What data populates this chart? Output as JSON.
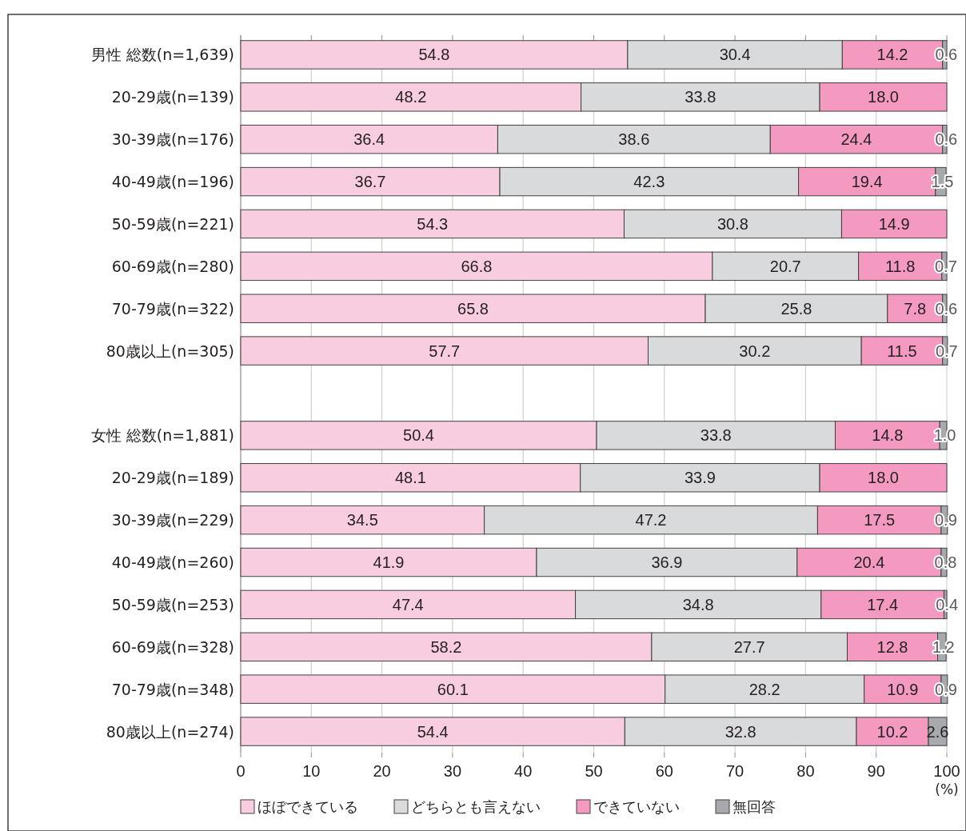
{
  "chart_data": {
    "type": "bar",
    "orientation": "horizontal",
    "stacked": true,
    "grid": "x",
    "legend": "bottom",
    "xlabel": "(%)",
    "categories": [
      "男性 総数(n=1,639)",
      "20-29歳(n=139)",
      "30-39歳(n=176)",
      "40-49歳(n=196)",
      "50-59歳(n=221)",
      "60-69歳(n=280)",
      "70-79歳(n=322)",
      "80歳以上(n=305)",
      null,
      "女性 総数(n=1,881)",
      "20-29歳(n=189)",
      "30-39歳(n=229)",
      "40-49歳(n=260)",
      "50-59歳(n=253)",
      "60-69歳(n=328)",
      "70-79歳(n=348)",
      "80歳以上(n=274)"
    ],
    "series": [
      {
        "name": "ほぼできている",
        "color": "#f9cde0",
        "values": [
          54.8,
          48.2,
          36.4,
          36.7,
          54.3,
          66.8,
          65.8,
          57.7,
          null,
          50.4,
          48.1,
          34.5,
          41.9,
          47.4,
          58.2,
          60.1,
          54.4
        ],
        "value_labels": [
          "54.8",
          "48.2",
          "36.4",
          "36.7",
          "54.3",
          "66.8",
          "65.8",
          "57.7",
          null,
          "50.4",
          "48.1",
          "34.5",
          "41.9",
          "47.4",
          "58.2",
          "60.1",
          "54.4"
        ]
      },
      {
        "name": "どちらとも言えない",
        "color": "#d9dadb",
        "values": [
          30.4,
          33.8,
          38.6,
          42.3,
          30.8,
          20.7,
          25.8,
          30.2,
          null,
          33.8,
          33.9,
          47.2,
          36.9,
          34.8,
          27.7,
          28.2,
          32.8
        ],
        "value_labels": [
          "30.4",
          "33.8",
          "38.6",
          "42.3",
          "30.8",
          "20.7",
          "25.8",
          "30.2",
          null,
          "33.8",
          "33.9",
          "47.2",
          "36.9",
          "34.8",
          "27.7",
          "28.2",
          "32.8"
        ]
      },
      {
        "name": "できていない",
        "color": "#f49ac1",
        "values": [
          14.2,
          18.0,
          24.4,
          19.4,
          14.9,
          11.8,
          7.8,
          11.5,
          null,
          14.8,
          18.0,
          17.5,
          20.4,
          17.4,
          12.8,
          10.9,
          10.2
        ],
        "value_labels": [
          "14.2",
          "18.0",
          "24.4",
          "19.4",
          "14.9",
          "11.8",
          "7.8",
          "11.5",
          null,
          "14.8",
          "18.0",
          "17.5",
          "20.4",
          "17.4",
          "12.8",
          "10.9",
          "10.2"
        ]
      },
      {
        "name": "無回答",
        "color": "#a7a9ac",
        "values": [
          0.6,
          null,
          0.6,
          1.5,
          null,
          0.7,
          0.6,
          0.7,
          null,
          1.0,
          null,
          0.9,
          0.8,
          0.4,
          1.2,
          0.9,
          2.6
        ],
        "value_labels": [
          "0.6",
          null,
          "0.6",
          "1.5",
          null,
          "0.7",
          "0.6",
          "0.7",
          null,
          "1.0",
          null,
          "0.9",
          "0.8",
          "0.4",
          "1.2",
          "0.9",
          "2.6"
        ]
      }
    ],
    "xlim": [
      0,
      100
    ],
    "xticks": [
      0,
      10,
      20,
      30,
      40,
      50,
      60,
      70,
      80,
      90,
      100
    ]
  }
}
